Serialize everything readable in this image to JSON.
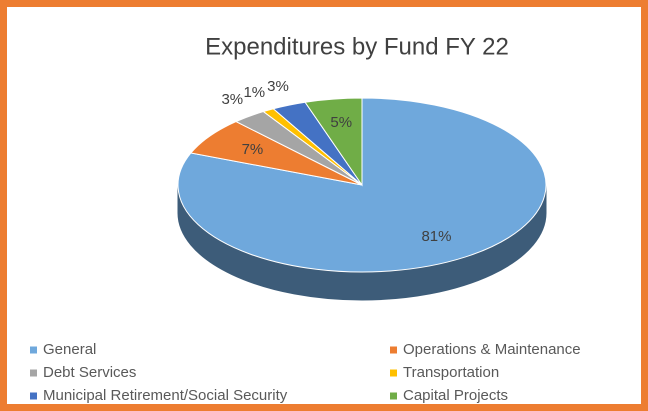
{
  "chart_data": {
    "type": "pie3d",
    "title": "Expenditures by Fund FY 22",
    "categories": [
      "General",
      "Operations & Maintenance",
      "Debt Services",
      "Transportation",
      "Municipal Retirement/Social Security",
      "Capital Projects"
    ],
    "values": [
      81,
      7,
      3,
      1,
      3,
      5
    ],
    "value_labels": [
      "81%",
      "7%",
      "3%",
      "1%",
      "3%",
      "5%"
    ],
    "colors": [
      "#6fa8dc",
      "#ed7d31",
      "#a5a5a5",
      "#ffc000",
      "#4472c4",
      "#70ad47"
    ],
    "legend": "bottom"
  }
}
